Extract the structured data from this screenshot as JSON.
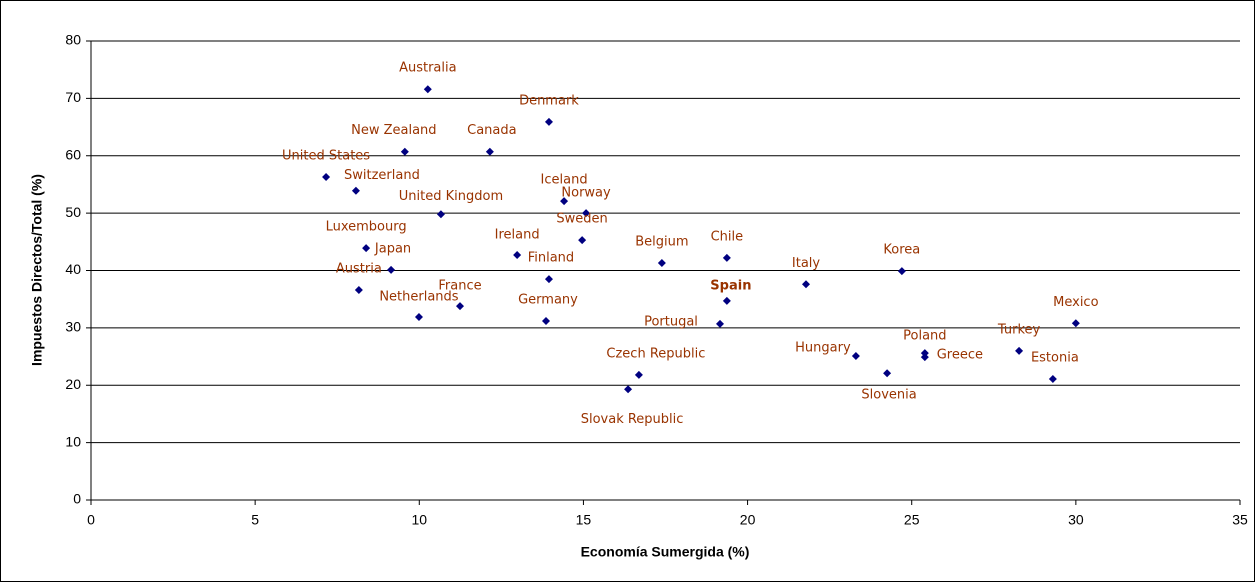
{
  "chart_data": {
    "type": "scatter",
    "xlabel": "Economía Sumergida (%)",
    "ylabel": "Impuestos Directos/Total (%)",
    "xlim": [
      0,
      35
    ],
    "xticks": [
      0,
      5,
      10,
      15,
      20,
      25,
      30,
      35
    ],
    "ylim": [
      0,
      80
    ],
    "yticks": [
      0,
      10,
      20,
      30,
      40,
      50,
      60,
      70,
      80
    ],
    "grid": true,
    "marker_color": "#000080",
    "label_color": "#993300",
    "points": [
      {
        "label": "Australia",
        "x": 10.26,
        "y": 71.6
      },
      {
        "label": "Denmark",
        "x": 13.95,
        "y": 65.9
      },
      {
        "label": "New Zealand",
        "x": 9.56,
        "y": 60.7
      },
      {
        "label": "Canada",
        "x": 12.15,
        "y": 60.7
      },
      {
        "label": "United States",
        "x": 7.16,
        "y": 56.3
      },
      {
        "label": "Switzerland",
        "x": 8.07,
        "y": 53.9
      },
      {
        "label": "United Kingdom",
        "x": 10.66,
        "y": 49.8
      },
      {
        "label": "Iceland",
        "x": 14.41,
        "y": 52.1
      },
      {
        "label": "Norway",
        "x": 15.08,
        "y": 50.0
      },
      {
        "label": "Sweden",
        "x": 14.96,
        "y": 45.3
      },
      {
        "label": "Luxembourg",
        "x": 8.38,
        "y": 43.9
      },
      {
        "label": "Japan",
        "x": 9.14,
        "y": 40.1
      },
      {
        "label": "Ireland",
        "x": 12.98,
        "y": 42.7
      },
      {
        "label": "Finland",
        "x": 13.95,
        "y": 38.5
      },
      {
        "label": "Belgium",
        "x": 17.39,
        "y": 41.3
      },
      {
        "label": "Chile",
        "x": 19.37,
        "y": 42.2
      },
      {
        "label": "Italy",
        "x": 21.78,
        "y": 37.6
      },
      {
        "label": "Korea",
        "x": 24.7,
        "y": 39.9
      },
      {
        "label": "Austria",
        "x": 8.16,
        "y": 36.6
      },
      {
        "label": "Spain",
        "x": 19.37,
        "y": 34.7
      },
      {
        "label": "France",
        "x": 11.24,
        "y": 33.8
      },
      {
        "label": "Netherlands",
        "x": 9.99,
        "y": 31.9
      },
      {
        "label": "Germany",
        "x": 13.86,
        "y": 31.2
      },
      {
        "label": "Portugal",
        "x": 19.16,
        "y": 30.7
      },
      {
        "label": "Mexico",
        "x": 30.0,
        "y": 30.8
      },
      {
        "label": "Hungary",
        "x": 23.3,
        "y": 25.1
      },
      {
        "label": "Poland",
        "x": 25.4,
        "y": 25.6
      },
      {
        "label": "Greece",
        "x": 25.4,
        "y": 24.9
      },
      {
        "label": "Turkey",
        "x": 28.27,
        "y": 26.0
      },
      {
        "label": "Slovenia",
        "x": 24.25,
        "y": 22.1
      },
      {
        "label": "Estonia",
        "x": 29.3,
        "y": 21.1
      },
      {
        "label": "Czech Republic",
        "x": 16.69,
        "y": 21.8
      },
      {
        "label": "Slovak Republic",
        "x": 16.36,
        "y": 19.3
      }
    ]
  }
}
